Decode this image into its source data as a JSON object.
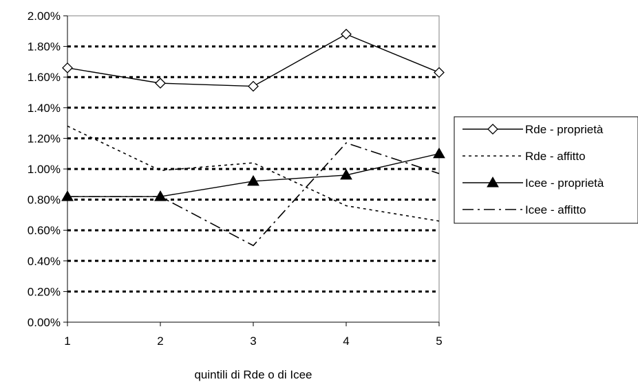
{
  "chart_data": {
    "type": "line",
    "title": "",
    "xlabel": "quintili di Rde o di Icee",
    "ylabel": "",
    "x": [
      1,
      2,
      3,
      4,
      5
    ],
    "ylim": [
      0,
      0.02
    ],
    "yticks": [
      "0.00%",
      "0.20%",
      "0.40%",
      "0.60%",
      "0.80%",
      "1.00%",
      "1.20%",
      "1.40%",
      "1.60%",
      "1.80%",
      "2.00%"
    ],
    "xticks": [
      "1",
      "2",
      "3",
      "4",
      "5"
    ],
    "grid": "horizontal dotted",
    "legend": "right",
    "series": [
      {
        "name": "Rde - proprietà",
        "values": [
          0.0166,
          0.0156,
          0.0154,
          0.0188,
          0.0163
        ],
        "line": "solid",
        "marker": "diamond-open"
      },
      {
        "name": "Rde - affitto",
        "values": [
          0.0128,
          0.0099,
          0.0104,
          0.0076,
          0.0066
        ],
        "line": "dotted",
        "marker": "none"
      },
      {
        "name": "Icee - proprietà",
        "values": [
          0.0082,
          0.0082,
          0.0092,
          0.0096,
          0.011
        ],
        "line": "solid",
        "marker": "triangle-filled"
      },
      {
        "name": "Icee - affitto",
        "values": [
          0.0082,
          0.0082,
          0.005,
          0.0117,
          0.0097
        ],
        "line": "dashdot",
        "marker": "none"
      }
    ]
  }
}
